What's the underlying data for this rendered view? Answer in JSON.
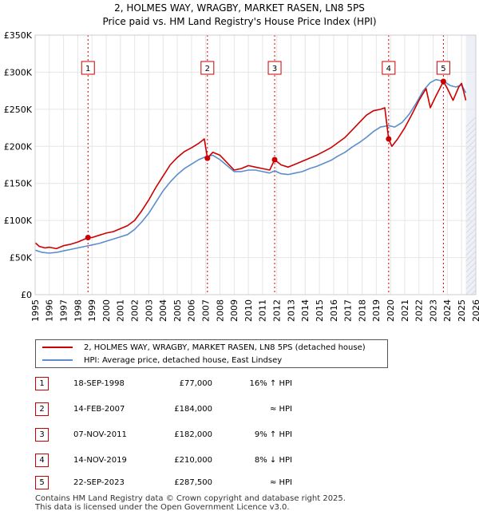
{
  "chart_data": {
    "type": "line",
    "title": "2, HOLMES WAY, WRAGBY, MARKET RASEN, LN8 5PS",
    "subtitle": "Price paid vs. HM Land Registry's House Price Index (HPI)",
    "xlim": [
      1995,
      2026
    ],
    "ylim": [
      0,
      350000
    ],
    "yticks": [
      0,
      50000,
      100000,
      150000,
      200000,
      250000,
      300000,
      350000
    ],
    "ytick_labels": [
      "£0",
      "£50K",
      "£100K",
      "£150K",
      "£200K",
      "£250K",
      "£300K",
      "£350K"
    ],
    "xticks": [
      1995,
      1996,
      1997,
      1998,
      1999,
      2000,
      2001,
      2002,
      2003,
      2004,
      2005,
      2006,
      2007,
      2008,
      2009,
      2010,
      2011,
      2012,
      2013,
      2014,
      2015,
      2016,
      2017,
      2018,
      2019,
      2020,
      2021,
      2022,
      2023,
      2024,
      2025,
      2026
    ],
    "forecast_from": 2025.3,
    "series": [
      {
        "name": "2, HOLMES WAY, WRAGBY, MARKET RASEN, LN8 5PS (detached house)",
        "color": "#cc0000",
        "points": [
          [
            1995.0,
            70000
          ],
          [
            1995.3,
            65000
          ],
          [
            1995.7,
            63000
          ],
          [
            1996.0,
            64000
          ],
          [
            1996.5,
            62000
          ],
          [
            1997.0,
            66000
          ],
          [
            1997.5,
            68000
          ],
          [
            1998.0,
            71000
          ],
          [
            1998.5,
            75000
          ],
          [
            1998.72,
            77000
          ],
          [
            1999.0,
            77000
          ],
          [
            1999.5,
            80000
          ],
          [
            2000.0,
            83000
          ],
          [
            2000.5,
            85000
          ],
          [
            2001.0,
            89000
          ],
          [
            2001.5,
            93000
          ],
          [
            2002.0,
            100000
          ],
          [
            2002.5,
            113000
          ],
          [
            2003.0,
            128000
          ],
          [
            2003.5,
            145000
          ],
          [
            2004.0,
            160000
          ],
          [
            2004.5,
            175000
          ],
          [
            2005.0,
            185000
          ],
          [
            2005.5,
            193000
          ],
          [
            2006.0,
            198000
          ],
          [
            2006.5,
            204000
          ],
          [
            2006.9,
            210000
          ],
          [
            2007.12,
            184000
          ],
          [
            2007.5,
            192000
          ],
          [
            2008.0,
            188000
          ],
          [
            2008.5,
            178000
          ],
          [
            2009.0,
            168000
          ],
          [
            2009.5,
            170000
          ],
          [
            2010.0,
            174000
          ],
          [
            2010.5,
            172000
          ],
          [
            2011.0,
            170000
          ],
          [
            2011.5,
            168000
          ],
          [
            2011.85,
            182000
          ],
          [
            2012.3,
            175000
          ],
          [
            2012.8,
            172000
          ],
          [
            2013.3,
            176000
          ],
          [
            2013.8,
            180000
          ],
          [
            2014.3,
            184000
          ],
          [
            2014.8,
            188000
          ],
          [
            2015.3,
            193000
          ],
          [
            2015.8,
            198000
          ],
          [
            2016.3,
            205000
          ],
          [
            2016.8,
            212000
          ],
          [
            2017.3,
            222000
          ],
          [
            2017.8,
            232000
          ],
          [
            2018.3,
            242000
          ],
          [
            2018.8,
            248000
          ],
          [
            2019.3,
            250000
          ],
          [
            2019.6,
            252000
          ],
          [
            2019.87,
            210000
          ],
          [
            2020.1,
            200000
          ],
          [
            2020.5,
            210000
          ],
          [
            2021.0,
            225000
          ],
          [
            2021.5,
            243000
          ],
          [
            2022.0,
            262000
          ],
          [
            2022.5,
            278000
          ],
          [
            2022.8,
            252000
          ],
          [
            2023.2,
            268000
          ],
          [
            2023.72,
            287500
          ],
          [
            2024.0,
            278000
          ],
          [
            2024.4,
            262000
          ],
          [
            2024.8,
            280000
          ],
          [
            2025.0,
            285000
          ],
          [
            2025.3,
            262000
          ]
        ]
      },
      {
        "name": "HPI: Average price, detached house, East Lindsey",
        "color": "#5b8ecb",
        "points": [
          [
            1995.0,
            60000
          ],
          [
            1995.5,
            57000
          ],
          [
            1996.0,
            56000
          ],
          [
            1996.5,
            57000
          ],
          [
            1997.0,
            59000
          ],
          [
            1997.5,
            61000
          ],
          [
            1998.0,
            63000
          ],
          [
            1998.5,
            65000
          ],
          [
            1999.0,
            67000
          ],
          [
            1999.5,
            69000
          ],
          [
            2000.0,
            72000
          ],
          [
            2000.5,
            75000
          ],
          [
            2001.0,
            78000
          ],
          [
            2001.5,
            81000
          ],
          [
            2002.0,
            88000
          ],
          [
            2002.5,
            98000
          ],
          [
            2003.0,
            110000
          ],
          [
            2003.5,
            125000
          ],
          [
            2004.0,
            140000
          ],
          [
            2004.5,
            152000
          ],
          [
            2005.0,
            162000
          ],
          [
            2005.5,
            170000
          ],
          [
            2006.0,
            176000
          ],
          [
            2006.5,
            182000
          ],
          [
            2007.0,
            186000
          ],
          [
            2007.5,
            188000
          ],
          [
            2008.0,
            182000
          ],
          [
            2008.5,
            174000
          ],
          [
            2009.0,
            166000
          ],
          [
            2009.5,
            166000
          ],
          [
            2010.0,
            168000
          ],
          [
            2010.5,
            168000
          ],
          [
            2011.0,
            166000
          ],
          [
            2011.5,
            164000
          ],
          [
            2011.85,
            167000
          ],
          [
            2012.3,
            163000
          ],
          [
            2012.8,
            162000
          ],
          [
            2013.3,
            164000
          ],
          [
            2013.8,
            166000
          ],
          [
            2014.3,
            170000
          ],
          [
            2014.8,
            173000
          ],
          [
            2015.3,
            177000
          ],
          [
            2015.8,
            181000
          ],
          [
            2016.3,
            187000
          ],
          [
            2016.8,
            192000
          ],
          [
            2017.3,
            199000
          ],
          [
            2017.8,
            205000
          ],
          [
            2018.3,
            212000
          ],
          [
            2018.8,
            220000
          ],
          [
            2019.3,
            226000
          ],
          [
            2019.87,
            228000
          ],
          [
            2020.3,
            226000
          ],
          [
            2020.8,
            232000
          ],
          [
            2021.3,
            243000
          ],
          [
            2021.8,
            258000
          ],
          [
            2022.3,
            275000
          ],
          [
            2022.8,
            286000
          ],
          [
            2023.2,
            290000
          ],
          [
            2023.72,
            288000
          ],
          [
            2024.2,
            282000
          ],
          [
            2024.6,
            280000
          ],
          [
            2025.0,
            283000
          ],
          [
            2025.3,
            272000
          ]
        ]
      }
    ],
    "sales": [
      {
        "num": "1",
        "x": 1998.72,
        "price": 77000
      },
      {
        "num": "2",
        "x": 2007.12,
        "price": 184000
      },
      {
        "num": "3",
        "x": 2011.85,
        "price": 182000
      },
      {
        "num": "4",
        "x": 2019.87,
        "price": 210000
      },
      {
        "num": "5",
        "x": 2023.72,
        "price": 287500
      }
    ]
  },
  "legend": {
    "property_label": "2, HOLMES WAY, WRAGBY, MARKET RASEN, LN8 5PS (detached house)",
    "hpi_label": "HPI: Average price, detached house, East Lindsey"
  },
  "sales_table": [
    {
      "num": "1",
      "date": "18-SEP-1998",
      "price": "£77,000",
      "hpi": "16% ↑ HPI"
    },
    {
      "num": "2",
      "date": "14-FEB-2007",
      "price": "£184,000",
      "hpi": "≈ HPI"
    },
    {
      "num": "3",
      "date": "07-NOV-2011",
      "price": "£182,000",
      "hpi": "9% ↑ HPI"
    },
    {
      "num": "4",
      "date": "14-NOV-2019",
      "price": "£210,000",
      "hpi": "8% ↓ HPI"
    },
    {
      "num": "5",
      "date": "22-SEP-2023",
      "price": "£287,500",
      "hpi": "≈ HPI"
    }
  ],
  "footer": {
    "line1": "Contains HM Land Registry data © Crown copyright and database right 2025.",
    "line2": "This data is licensed under the Open Government Licence v3.0."
  }
}
